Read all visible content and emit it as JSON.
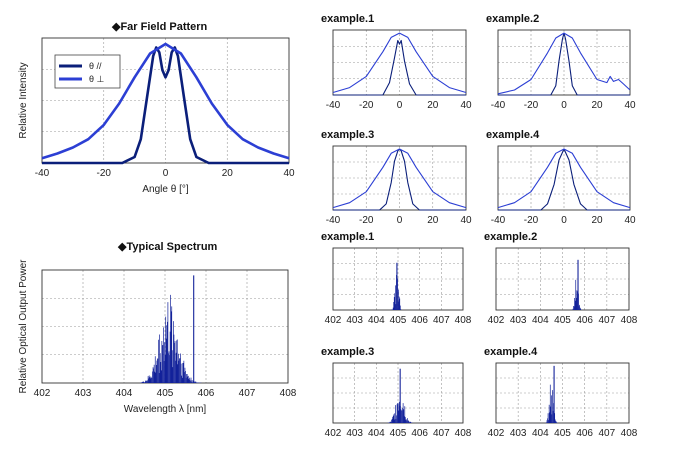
{
  "colors": {
    "dark": "#0b1f7a",
    "light": "#2c3fd4",
    "fill": "#13229a"
  },
  "far_field": {
    "title": "◆Far Field Pattern",
    "legend": [
      "θ //",
      "θ ⊥"
    ]
  },
  "typical_spectrum": {
    "title": "◆Typical Spectrum"
  },
  "chart_data": [
    {
      "id": "ff-main",
      "type": "line",
      "xlabel": "Angle θ [°]",
      "ylabel": "Relative Intensity",
      "xlim": [
        -40,
        40
      ],
      "ylim": [
        0,
        1.05
      ],
      "grid": true,
      "legend_position": "top-left",
      "x_ticks": [
        "-40",
        "-20",
        "0",
        "20",
        "40"
      ],
      "series": [
        {
          "name": "θ //",
          "color": "#0b1f7a",
          "x": [
            -40,
            -14,
            -10,
            -8,
            -6,
            -4,
            -3,
            -2,
            -1,
            0,
            1,
            2,
            3,
            4,
            6,
            8,
            10,
            14,
            40
          ],
          "y": [
            0,
            0,
            0.05,
            0.2,
            0.55,
            0.9,
            0.97,
            0.93,
            0.78,
            0.72,
            0.78,
            0.93,
            0.97,
            0.9,
            0.55,
            0.2,
            0.05,
            0,
            0
          ]
        },
        {
          "name": "θ ⊥",
          "color": "#2c3fd4",
          "x": [
            -40,
            -35,
            -30,
            -25,
            -20,
            -15,
            -10,
            -5,
            0,
            5,
            10,
            15,
            20,
            25,
            30,
            35,
            40
          ],
          "y": [
            0.04,
            0.08,
            0.13,
            0.2,
            0.32,
            0.5,
            0.72,
            0.92,
            1.0,
            0.92,
            0.72,
            0.5,
            0.32,
            0.2,
            0.13,
            0.08,
            0.04
          ]
        }
      ]
    },
    {
      "id": "ff-ex1",
      "type": "line",
      "title": "example.1",
      "xlim": [
        -40,
        40
      ],
      "ylim": [
        0,
        1.05
      ],
      "grid": true,
      "x_ticks": [
        "-40",
        "-20",
        "0",
        "20",
        "40"
      ],
      "series": [
        {
          "color": "#0b1f7a",
          "x": [
            -40,
            -10,
            -6,
            -3,
            -1,
            0,
            1,
            3,
            6,
            10,
            40
          ],
          "y": [
            0,
            0,
            0.2,
            0.6,
            0.88,
            0.82,
            0.88,
            0.55,
            0.18,
            0,
            0
          ]
        },
        {
          "color": "#2c3fd4",
          "x": [
            -40,
            -30,
            -20,
            -10,
            -5,
            0,
            5,
            10,
            20,
            30,
            40
          ],
          "y": [
            0.04,
            0.12,
            0.3,
            0.7,
            0.93,
            1.0,
            0.93,
            0.7,
            0.3,
            0.12,
            0.04
          ]
        }
      ]
    },
    {
      "id": "ff-ex2",
      "type": "line",
      "title": "example.2",
      "xlim": [
        -40,
        40
      ],
      "ylim": [
        0,
        1.05
      ],
      "grid": true,
      "x_ticks": [
        "-40",
        "-20",
        "0",
        "20",
        "40"
      ],
      "series": [
        {
          "color": "#0b1f7a",
          "x": [
            -40,
            -8,
            -5,
            -3,
            -1,
            0,
            1,
            3,
            5,
            8,
            40
          ],
          "y": [
            0,
            0,
            0.15,
            0.55,
            0.9,
            1.0,
            0.9,
            0.55,
            0.15,
            0,
            0
          ]
        },
        {
          "color": "#2c3fd4",
          "x": [
            -40,
            -30,
            -20,
            -10,
            -5,
            0,
            5,
            10,
            20,
            26,
            28,
            30,
            33,
            36,
            40
          ],
          "y": [
            0.02,
            0.08,
            0.25,
            0.68,
            0.92,
            1.0,
            0.92,
            0.68,
            0.25,
            0.2,
            0.3,
            0.22,
            0.25,
            0.18,
            0.08
          ]
        }
      ]
    },
    {
      "id": "ff-ex3",
      "type": "line",
      "title": "example.3",
      "xlim": [
        -40,
        40
      ],
      "ylim": [
        0,
        1.05
      ],
      "grid": true,
      "x_ticks": [
        "-40",
        "-20",
        "0",
        "20",
        "40"
      ],
      "series": [
        {
          "color": "#0b1f7a",
          "x": [
            -40,
            -12,
            -8,
            -5,
            -3,
            -1,
            0,
            1,
            3,
            5,
            8,
            12,
            40
          ],
          "y": [
            0,
            0,
            0.1,
            0.45,
            0.8,
            0.97,
            1.0,
            0.97,
            0.8,
            0.45,
            0.1,
            0,
            0
          ]
        },
        {
          "color": "#2c3fd4",
          "x": [
            -40,
            -30,
            -20,
            -10,
            -5,
            0,
            5,
            10,
            20,
            30,
            40
          ],
          "y": [
            0.04,
            0.12,
            0.3,
            0.7,
            0.93,
            1.0,
            0.93,
            0.7,
            0.3,
            0.12,
            0.04
          ]
        }
      ]
    },
    {
      "id": "ff-ex4",
      "type": "line",
      "title": "example.4",
      "xlim": [
        -40,
        40
      ],
      "ylim": [
        0,
        1.05
      ],
      "grid": true,
      "x_ticks": [
        "-40",
        "-20",
        "0",
        "20",
        "40"
      ],
      "series": [
        {
          "color": "#0b1f7a",
          "x": [
            -40,
            -14,
            -10,
            -6,
            -3,
            0,
            3,
            6,
            10,
            14,
            40
          ],
          "y": [
            0,
            0,
            0.1,
            0.42,
            0.82,
            1.0,
            0.82,
            0.42,
            0.1,
            0,
            0
          ]
        },
        {
          "color": "#2c3fd4",
          "x": [
            -40,
            -30,
            -20,
            -10,
            -5,
            0,
            5,
            10,
            20,
            30,
            40
          ],
          "y": [
            0.04,
            0.12,
            0.3,
            0.7,
            0.93,
            1.0,
            0.93,
            0.7,
            0.3,
            0.12,
            0.04
          ]
        }
      ]
    },
    {
      "id": "sp-main",
      "type": "bar",
      "xlabel": "Wavelength λ [nm]",
      "ylabel": "Relative Optical Output Power",
      "xlim": [
        402,
        408
      ],
      "ylim": [
        0,
        1.05
      ],
      "grid": true,
      "x_ticks": [
        "402",
        "403",
        "404",
        "405",
        "406",
        "407",
        "408"
      ],
      "envelope": {
        "center": 405.1,
        "width": 0.32,
        "start": 404.4,
        "end": 405.9,
        "peak": 405.7,
        "peak_height": 1.0
      }
    },
    {
      "id": "sp-ex1",
      "type": "bar",
      "title": "example.1",
      "xlim": [
        402,
        408
      ],
      "ylim": [
        0,
        1.05
      ],
      "grid": true,
      "x_ticks": [
        "402",
        "403",
        "404",
        "405",
        "406",
        "407",
        "408"
      ],
      "envelope": {
        "center": 404.95,
        "width": 0.12,
        "start": 404.7,
        "end": 405.15,
        "peak": 404.95,
        "peak_height": 0.8
      }
    },
    {
      "id": "sp-ex2",
      "type": "bar",
      "title": "example.2",
      "xlim": [
        402,
        408
      ],
      "ylim": [
        0,
        1.05
      ],
      "grid": true,
      "x_ticks": [
        "402",
        "403",
        "404",
        "405",
        "406",
        "407",
        "408"
      ],
      "envelope": {
        "center": 405.65,
        "width": 0.1,
        "start": 405.3,
        "end": 405.9,
        "peak": 405.7,
        "peak_height": 0.85
      }
    },
    {
      "id": "sp-ex3",
      "type": "bar",
      "title": "example.3",
      "xlim": [
        402,
        408
      ],
      "ylim": [
        0,
        1.05
      ],
      "grid": true,
      "x_ticks": [
        "402",
        "403",
        "404",
        "405",
        "406",
        "407",
        "408"
      ],
      "envelope": {
        "center": 405.1,
        "width": 0.25,
        "start": 404.5,
        "end": 405.7,
        "peak": 405.1,
        "peak_height": 0.95
      }
    },
    {
      "id": "sp-ex4",
      "type": "bar",
      "title": "example.4",
      "xlim": [
        402,
        408
      ],
      "ylim": [
        0,
        1.05
      ],
      "grid": true,
      "x_ticks": [
        "402",
        "403",
        "404",
        "405",
        "406",
        "407",
        "408"
      ],
      "envelope": {
        "center": 404.5,
        "width": 0.12,
        "start": 404.2,
        "end": 404.85,
        "peak": 404.62,
        "peak_height": 1.0
      }
    }
  ]
}
